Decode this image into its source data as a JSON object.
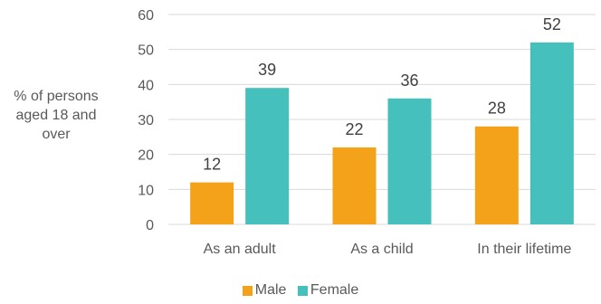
{
  "chart_data": {
    "type": "bar",
    "categories": [
      "As an adult",
      "As a child",
      "In their lifetime"
    ],
    "series": [
      {
        "name": "Male",
        "values": [
          12,
          22,
          28
        ],
        "color": "#F5A21B"
      },
      {
        "name": "Female",
        "values": [
          39,
          36,
          52
        ],
        "color": "#45C0BC"
      }
    ],
    "ylabel": "% of persons aged 18 and over",
    "ylim": [
      0,
      60
    ],
    "yticks": [
      0,
      10,
      20,
      30,
      40,
      50,
      60
    ],
    "grid": true,
    "legend_position": "bottom"
  }
}
